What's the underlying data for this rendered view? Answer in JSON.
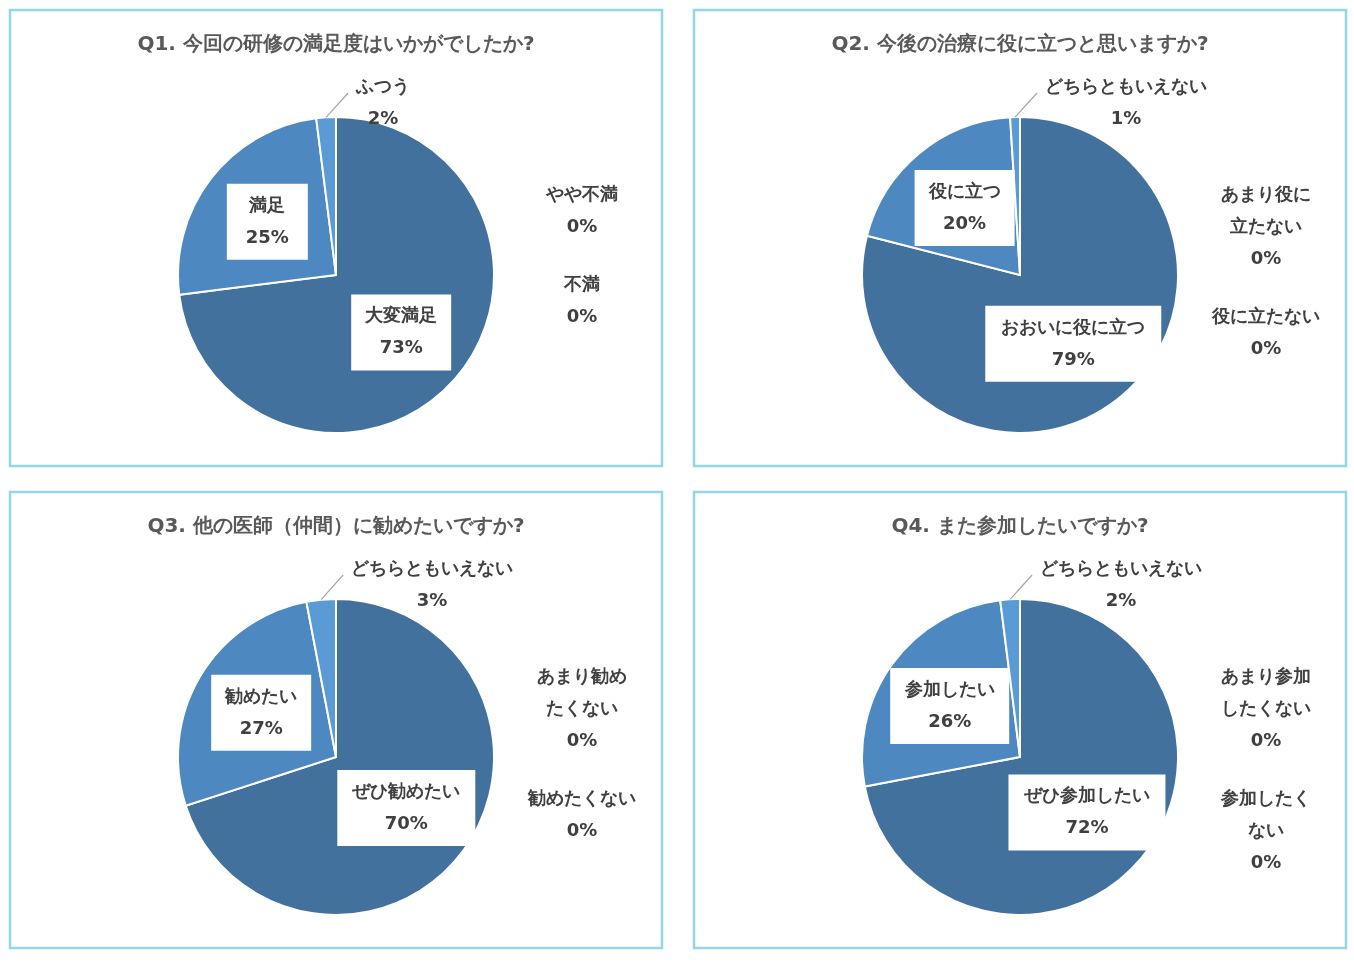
{
  "chart_data": [
    {
      "type": "pie",
      "title": "Q1. 今回の研修の満足度はいかがでしたか?",
      "categories": [
        "大変満足",
        "満足",
        "ふつう",
        "やや不満",
        "不満"
      ],
      "values": [
        73,
        25,
        2,
        0,
        0
      ],
      "value_labels": [
        "73%",
        "25%",
        "2%",
        "0%",
        "0%"
      ],
      "colors": [
        "#41719c",
        "#4e88c0",
        "#5b9bd5",
        "#a5a5a5",
        "#7f7f7f"
      ],
      "legend": false
    },
    {
      "type": "pie",
      "title": "Q2. 今後の治療に役に立つと思いますか?",
      "categories": [
        "おおいに役に立つ",
        "役に立つ",
        "どちらともいえない",
        "あまり役に立たない",
        "役に立たない"
      ],
      "values": [
        79,
        20,
        1,
        0,
        0
      ],
      "value_labels": [
        "79%",
        "20%",
        "1%",
        "0%",
        "0%"
      ],
      "colors": [
        "#41719c",
        "#4e88c0",
        "#5b9bd5",
        "#a5a5a5",
        "#7f7f7f"
      ],
      "legend": false
    },
    {
      "type": "pie",
      "title": "Q3. 他の医師（仲間）に勧めたいですか?",
      "categories": [
        "ぜひ勧めたい",
        "勧めたい",
        "どちらともいえない",
        "あまり勧めたくない",
        "勧めたくない"
      ],
      "values": [
        70,
        27,
        3,
        0,
        0
      ],
      "value_labels": [
        "70%",
        "27%",
        "3%",
        "0%",
        "0%"
      ],
      "colors": [
        "#41719c",
        "#4e88c0",
        "#5b9bd5",
        "#a5a5a5",
        "#7f7f7f"
      ],
      "legend": false
    },
    {
      "type": "pie",
      "title": "Q4. また参加したいですか?",
      "categories": [
        "ぜひ参加したい",
        "参加したい",
        "どちらともいえない",
        "あまり参加したくない",
        "参加したくない"
      ],
      "values": [
        72,
        26,
        2,
        0,
        0
      ],
      "value_labels": [
        "72%",
        "26%",
        "2%",
        "0%",
        "0%"
      ],
      "colors": [
        "#41719c",
        "#4e88c0",
        "#5b9bd5",
        "#a5a5a5",
        "#7f7f7f"
      ],
      "legend": false
    }
  ]
}
